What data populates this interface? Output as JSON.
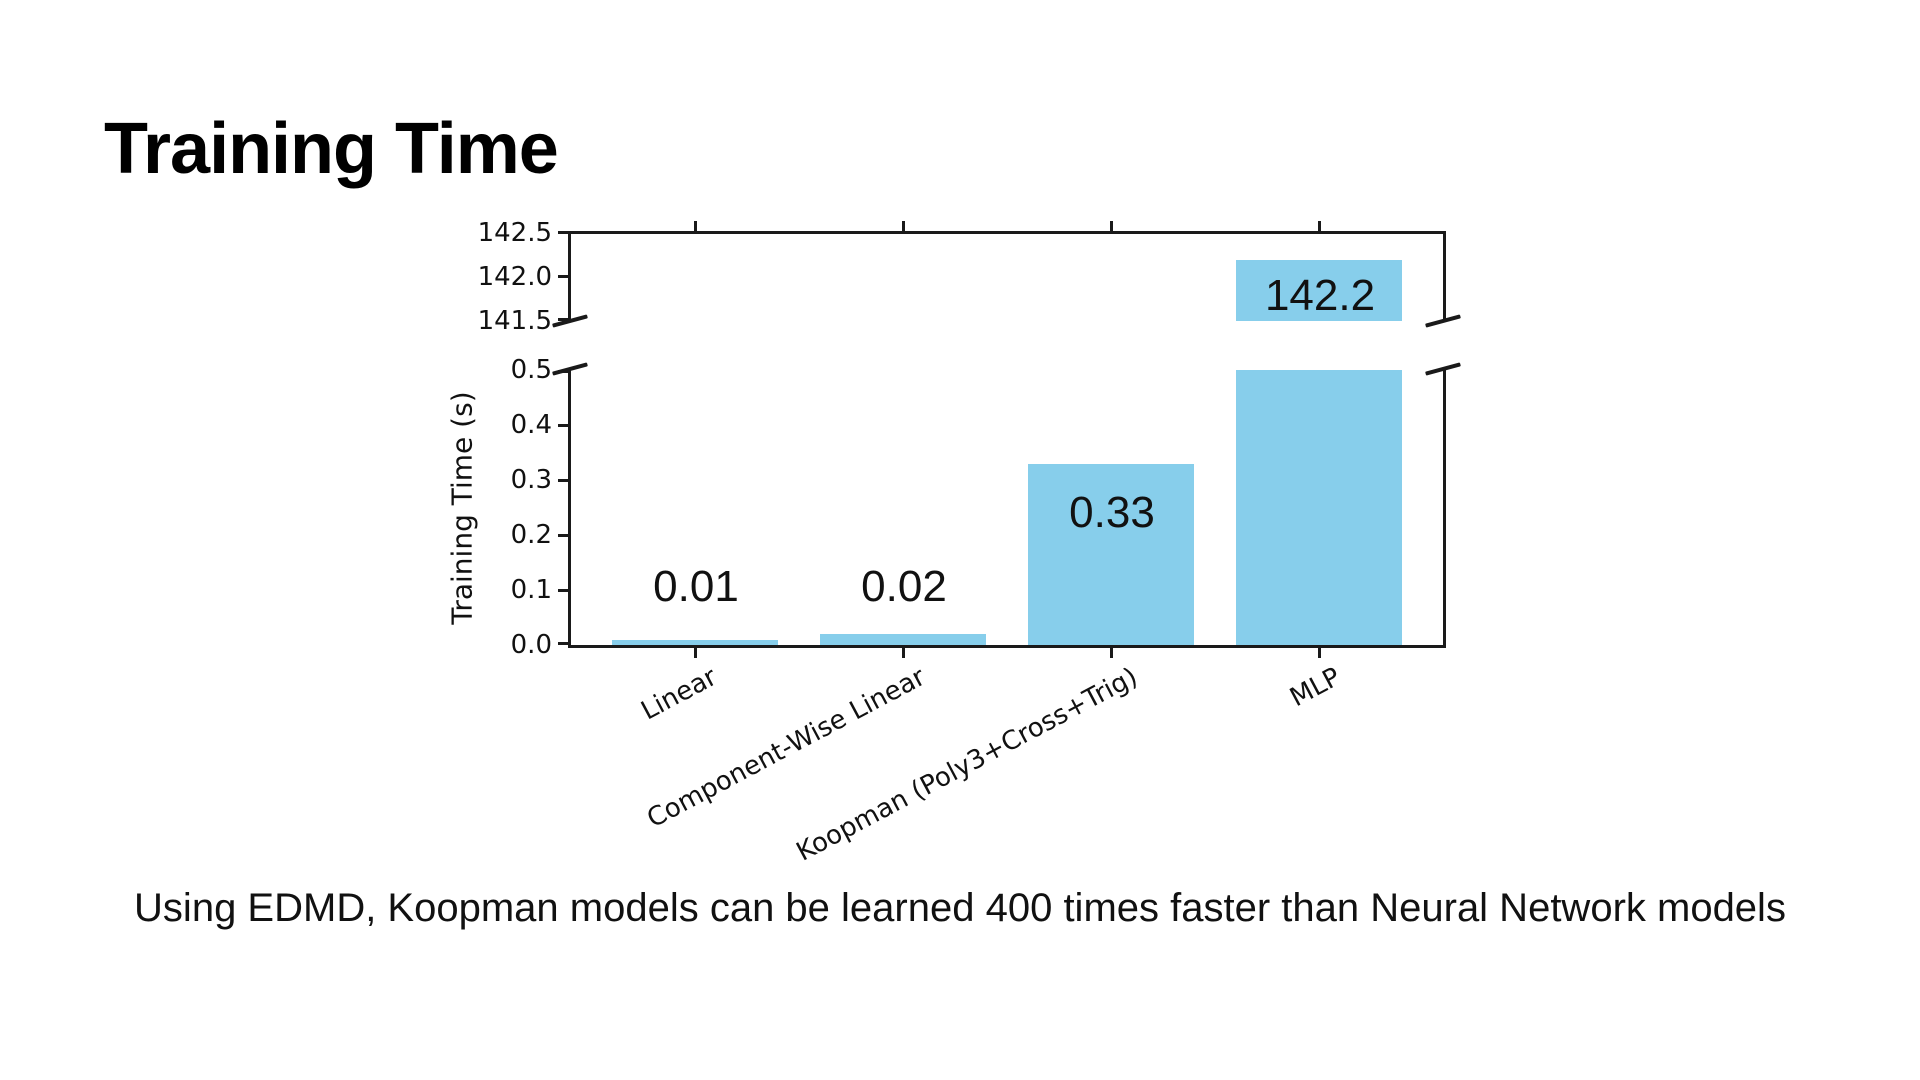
{
  "slide": {
    "title": "Training Time",
    "caption": "Using EDMD, Koopman models can be learned 400 times faster than Neural Network models"
  },
  "chart_data": {
    "type": "bar",
    "title": "Training Time",
    "ylabel": "Training Time (s)",
    "xlabel": "",
    "categories": [
      "Linear",
      "Component-Wise Linear",
      "Koopman (Poly3+Cross+Trig)",
      "MLP"
    ],
    "values": [
      0.01,
      0.02,
      0.33,
      142.2
    ],
    "value_labels": [
      "0.01",
      "0.02",
      "0.33",
      "142.2"
    ],
    "bar_color": "#87CEEB",
    "grid": false,
    "legend": "none",
    "broken_y_axis": true,
    "upper_axis": {
      "ylim": [
        141.5,
        142.5
      ],
      "ticks": [
        "142.5",
        "142.0",
        "141.5"
      ]
    },
    "lower_axis": {
      "ylim": [
        0.0,
        0.5
      ],
      "ticks": [
        "0.5",
        "0.4",
        "0.3",
        "0.2",
        "0.1",
        "0.0"
      ]
    }
  }
}
